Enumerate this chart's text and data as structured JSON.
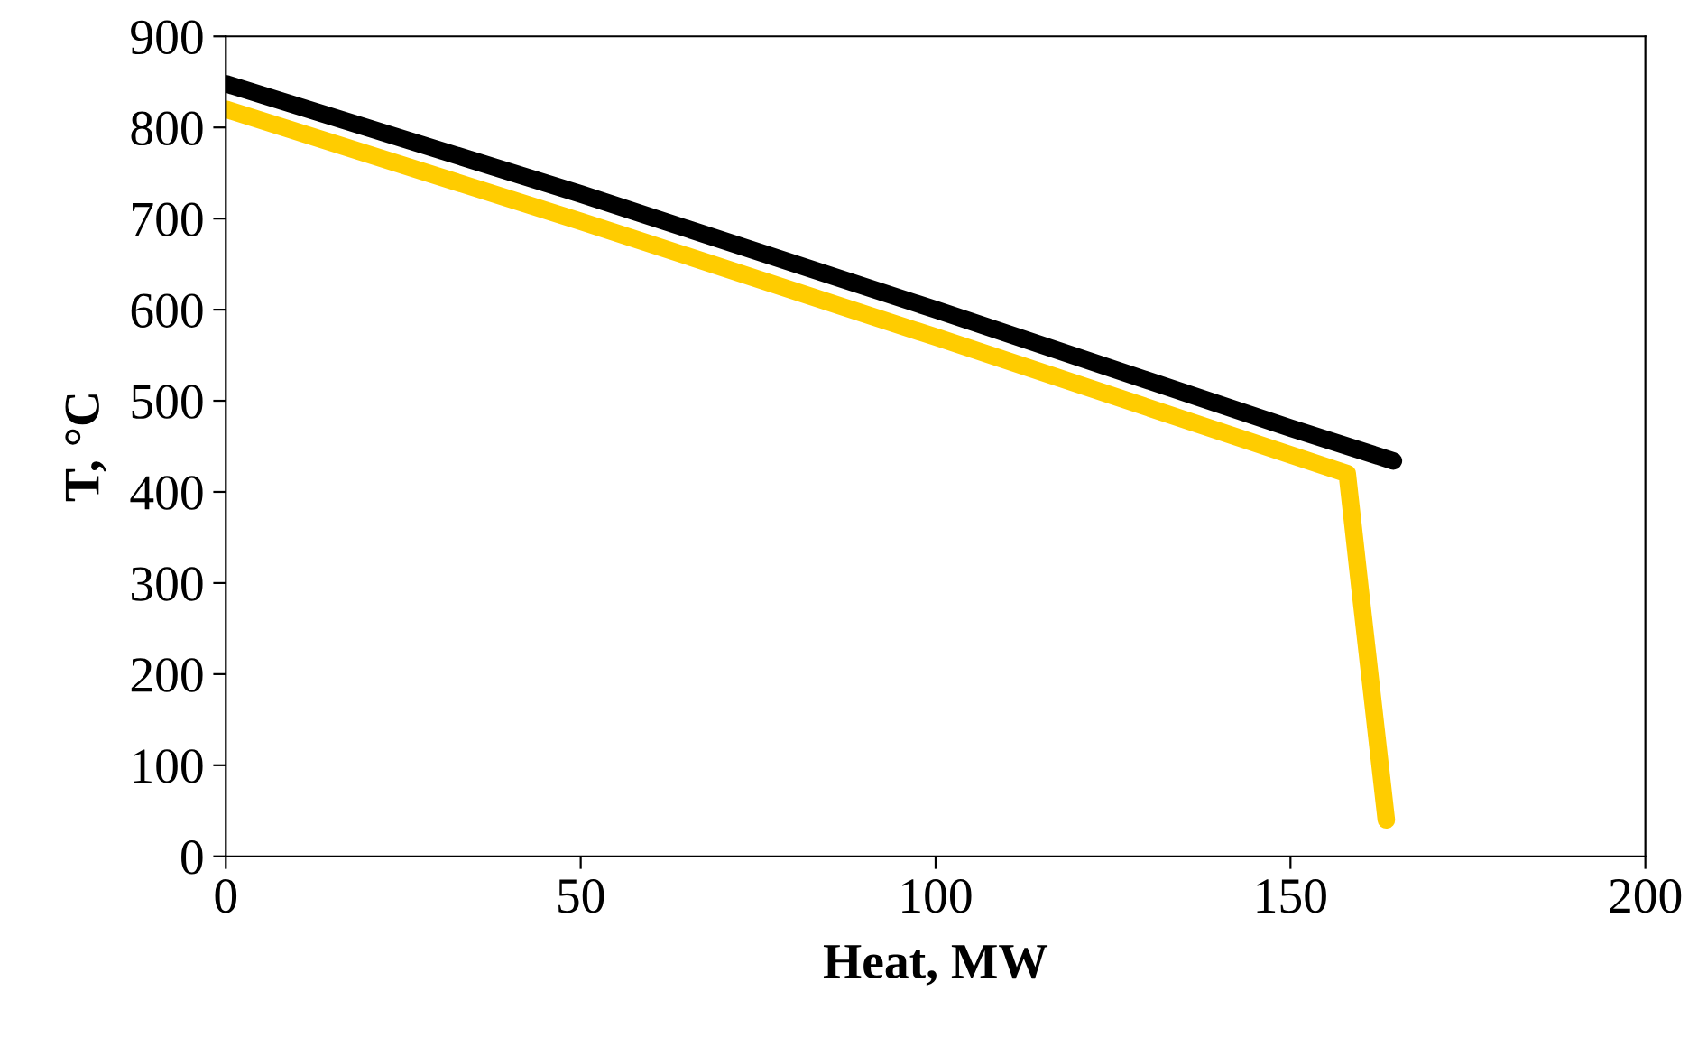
{
  "chart_data": {
    "type": "line",
    "xlabel": "Heat, MW",
    "ylabel": "T, °C",
    "xlim": [
      0,
      200
    ],
    "xticks": [
      0,
      50,
      100,
      150,
      200
    ],
    "ylim": [
      0,
      900
    ],
    "yticks": [
      0,
      100,
      200,
      300,
      400,
      500,
      600,
      700,
      800,
      900
    ],
    "grid": false,
    "marker": "none",
    "line_style": "solid",
    "series": [
      {
        "color": "#000000",
        "x": [
          0,
          50,
          100,
          150,
          164.5
        ],
        "values": [
          848,
          727,
          600,
          470,
          434
        ]
      },
      {
        "color": "#ffcc00",
        "x": [
          0,
          50,
          100,
          158,
          160,
          163.5
        ],
        "values": [
          820,
          697,
          570,
          420,
          280,
          40
        ]
      }
    ]
  }
}
